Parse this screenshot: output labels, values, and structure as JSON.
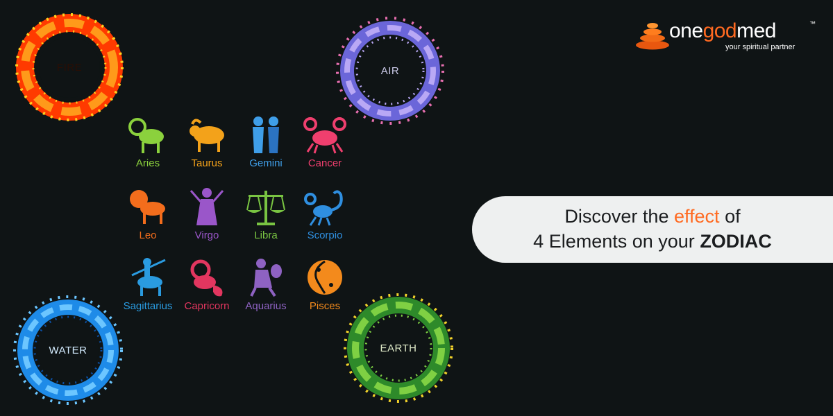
{
  "logo": {
    "word_start": "one",
    "word_mid": "god",
    "word_end": "med",
    "trademark": "™",
    "tagline": "your spiritual partner",
    "accent_color": "#ff6a21",
    "mark_icon": "stacked-stones-icon"
  },
  "elements": [
    {
      "label": "FIRE",
      "icon": "fire-ring-icon",
      "colors": [
        "#ff3a00",
        "#ff9a1a",
        "#ffd21f"
      ]
    },
    {
      "label": "AIR",
      "icon": "air-ring-icon",
      "colors": [
        "#6b66d9",
        "#b9a8f5",
        "#e86fb0"
      ]
    },
    {
      "label": "WATER",
      "icon": "water-ring-icon",
      "colors": [
        "#1e8be8",
        "#6cc6ff",
        "#0b4fa3"
      ]
    },
    {
      "label": "EARTH",
      "icon": "earth-ring-icon",
      "colors": [
        "#2e8a2a",
        "#7fd043",
        "#f2d22a"
      ]
    }
  ],
  "zodiac_signs": [
    {
      "name": "Aries",
      "icon": "aries-ram-icon",
      "color": "#8bd13d"
    },
    {
      "name": "Taurus",
      "icon": "taurus-bull-icon",
      "color": "#f3a21a"
    },
    {
      "name": "Gemini",
      "icon": "gemini-twins-icon",
      "color": "#3f9ee8"
    },
    {
      "name": "Cancer",
      "icon": "cancer-crab-icon",
      "color": "#ef3f6e"
    },
    {
      "name": "Leo",
      "icon": "leo-lion-icon",
      "color": "#f36d1c"
    },
    {
      "name": "Virgo",
      "icon": "virgo-maiden-icon",
      "color": "#9a56c9"
    },
    {
      "name": "Libra",
      "icon": "libra-scales-icon",
      "color": "#79c442"
    },
    {
      "name": "Scorpio",
      "icon": "scorpio-scorpion-icon",
      "color": "#2f8fe0"
    },
    {
      "name": "Sagittarius",
      "icon": "sagittarius-archer-icon",
      "color": "#2a9be0"
    },
    {
      "name": "Capricorn",
      "icon": "capricorn-goat-icon",
      "color": "#e2365f"
    },
    {
      "name": "Aquarius",
      "icon": "aquarius-water-bearer-icon",
      "color": "#8e62c2"
    },
    {
      "name": "Pisces",
      "icon": "pisces-fish-icon",
      "color": "#f38a1c"
    }
  ],
  "headline": {
    "line1_start": "Discover the",
    "line1_accent": "effect",
    "line1_end": "of",
    "line2_start": "4 Elements on your",
    "line2_bold": "ZODIAC",
    "accent_color": "#ff6a21"
  }
}
